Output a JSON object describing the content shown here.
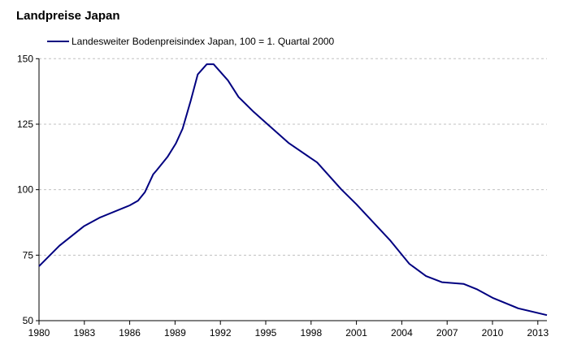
{
  "chart_data": {
    "type": "line",
    "title": "Landpreise Japan",
    "xlabel": "",
    "ylabel": "",
    "xlim": [
      1980,
      2013.7
    ],
    "ylim": [
      50,
      150
    ],
    "x_ticks": [
      "1980",
      "1983",
      "1986",
      "1989",
      "1992",
      "1995",
      "1998",
      "2001",
      "2004",
      "2007",
      "2010",
      "2013"
    ],
    "y_ticks": [
      "50",
      "75",
      "100",
      "125",
      "150"
    ],
    "grid": "horizontal dashed",
    "legend": "top-left",
    "line_color": "#000080",
    "grid_color": "#c0c0c0",
    "series": [
      {
        "name": "Landesweiter Bodenpreisindex Japan, 100 = 1. Quartal 2000",
        "points": [
          [
            1980.0,
            70.8
          ],
          [
            1981.35,
            78.6
          ],
          [
            1982.96,
            86.0
          ],
          [
            1984.0,
            89.3
          ],
          [
            1986.0,
            94.0
          ],
          [
            1986.55,
            95.8
          ],
          [
            1987.0,
            99.0
          ],
          [
            1987.55,
            105.8
          ],
          [
            1987.8,
            107.5
          ],
          [
            1988.5,
            112.5
          ],
          [
            1989.05,
            117.6
          ],
          [
            1989.5,
            123.3
          ],
          [
            1990.05,
            134.2
          ],
          [
            1990.5,
            144.0
          ],
          [
            1991.1,
            147.9
          ],
          [
            1991.55,
            147.9
          ],
          [
            1992.5,
            141.7
          ],
          [
            1993.2,
            135.4
          ],
          [
            1994.2,
            129.7
          ],
          [
            1994.9,
            126.1
          ],
          [
            1996.5,
            117.9
          ],
          [
            1998.4,
            110.4
          ],
          [
            2000.0,
            100.1
          ],
          [
            2001.0,
            94.4
          ],
          [
            2003.25,
            80.5
          ],
          [
            2004.5,
            71.7
          ],
          [
            2005.6,
            67.0
          ],
          [
            2006.65,
            64.7
          ],
          [
            2008.1,
            64.0
          ],
          [
            2009.0,
            61.9
          ],
          [
            2010.05,
            58.6
          ],
          [
            2011.7,
            54.7
          ],
          [
            2013.6,
            52.1
          ]
        ]
      }
    ]
  }
}
